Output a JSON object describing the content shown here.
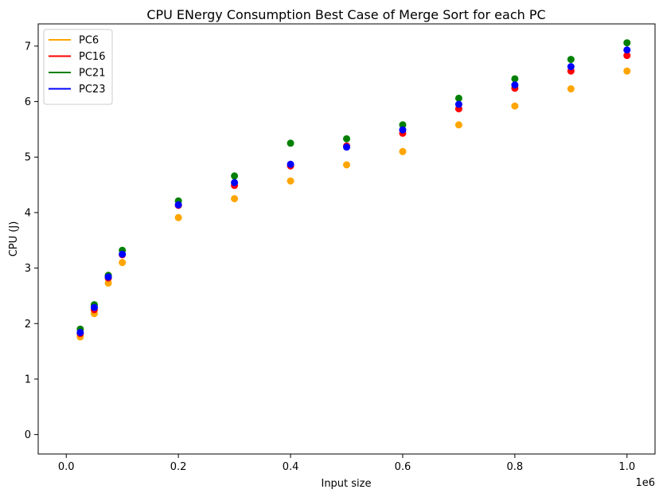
{
  "chart_data": {
    "type": "scatter",
    "title": "CPU ENergy Consumption Best Case of Merge Sort for each PC",
    "xlabel": "Input size",
    "ylabel": "CPU (J)",
    "x_offset_label": "1e6",
    "xlim": [
      -50000,
      1050000
    ],
    "ylim": [
      -0.35,
      7.4
    ],
    "x_ticks": [
      0,
      200000,
      400000,
      600000,
      800000,
      1000000
    ],
    "x_tick_labels": [
      "0.0",
      "0.2",
      "0.4",
      "0.6",
      "0.8",
      "1.0"
    ],
    "y_ticks": [
      0,
      1,
      2,
      3,
      4,
      5,
      6,
      7
    ],
    "y_tick_labels": [
      "0",
      "1",
      "2",
      "3",
      "4",
      "5",
      "6",
      "7"
    ],
    "grid": false,
    "legend_position": "top-left",
    "x": [
      25000,
      50000,
      75000,
      100000,
      200000,
      300000,
      400000,
      500000,
      600000,
      700000,
      800000,
      900000,
      1000000
    ],
    "series": [
      {
        "name": "PC6",
        "color": "#ffa500",
        "values": [
          1.76,
          2.18,
          2.73,
          3.1,
          3.91,
          4.25,
          4.57,
          4.86,
          5.1,
          5.58,
          5.92,
          6.23,
          6.55
        ]
      },
      {
        "name": "PC16",
        "color": "#ff0000",
        "values": [
          1.82,
          2.25,
          2.82,
          3.24,
          4.13,
          4.49,
          4.84,
          5.2,
          5.43,
          5.87,
          6.24,
          6.55,
          6.83
        ]
      },
      {
        "name": "PC21",
        "color": "#008000",
        "values": [
          1.9,
          2.34,
          2.87,
          3.32,
          4.21,
          4.66,
          5.25,
          5.33,
          5.58,
          6.06,
          6.41,
          6.76,
          7.06
        ]
      },
      {
        "name": "PC23",
        "color": "#0000ff",
        "values": [
          1.84,
          2.29,
          2.84,
          3.25,
          4.14,
          4.54,
          4.87,
          5.18,
          5.49,
          5.95,
          6.3,
          6.63,
          6.93
        ]
      }
    ]
  }
}
